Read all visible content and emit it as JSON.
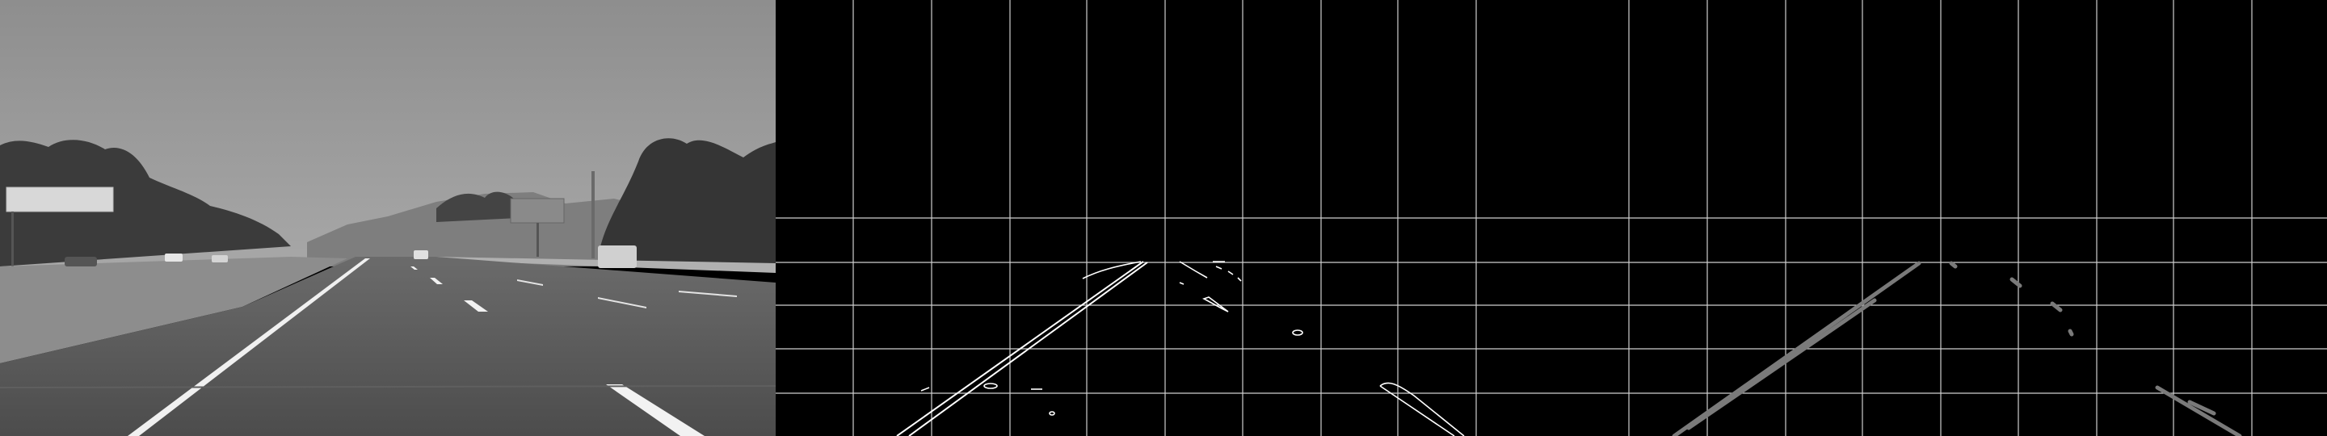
{
  "panels": [
    {
      "name": "grayscale-road-photo",
      "kind": "photo"
    },
    {
      "name": "canny-edges-with-grid",
      "kind": "edges"
    },
    {
      "name": "hough-lines-with-grid",
      "kind": "lines"
    }
  ],
  "colors": {
    "sky": "#9a9a9a",
    "road": "#555555",
    "edge": "#ffffff",
    "hough_line": "#7a7a7a",
    "grid": "#cfcfcf"
  }
}
